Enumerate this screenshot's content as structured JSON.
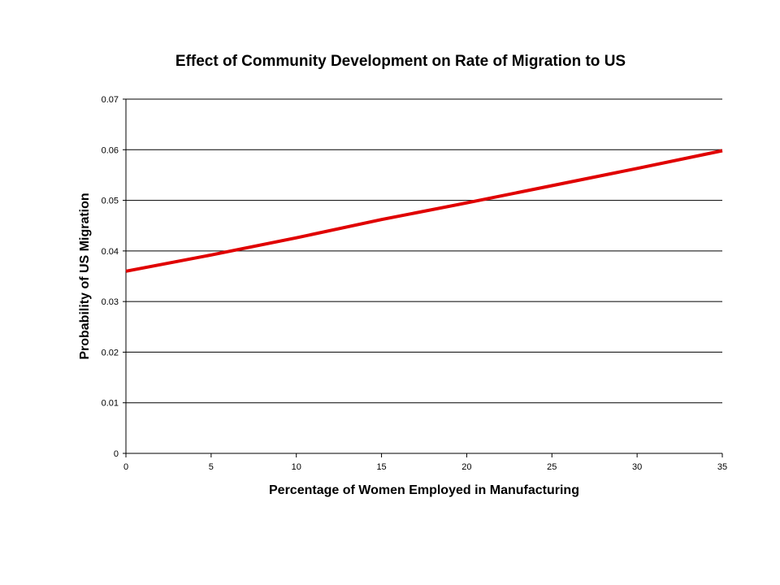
{
  "chart_data": {
    "type": "line",
    "title": "Effect of Community Development on Rate of Migration to US",
    "xlabel": "Percentage of Women Employed in Manufacturing",
    "ylabel": "Probability of US Migration",
    "xlim": [
      0,
      35
    ],
    "ylim": [
      0,
      0.07
    ],
    "x_ticks": [
      0,
      5,
      10,
      15,
      20,
      25,
      30,
      35
    ],
    "y_ticks": [
      0,
      0.01,
      0.02,
      0.03,
      0.04,
      0.05,
      0.06,
      0.07
    ],
    "x_tick_labels": [
      "0",
      "5",
      "10",
      "15",
      "20",
      "25",
      "30",
      "35"
    ],
    "y_tick_labels": [
      "0",
      "0.01",
      "0.02",
      "0.03",
      "0.04",
      "0.05",
      "0.06",
      "0.07"
    ],
    "grid": "horizontal",
    "legend": "none",
    "series": [
      {
        "color": "#e00000",
        "x": [
          0,
          5,
          10,
          15,
          20,
          25,
          30,
          35
        ],
        "y": [
          0.036,
          0.0392,
          0.0426,
          0.0462,
          0.0495,
          0.0529,
          0.0563,
          0.0598
        ]
      }
    ]
  }
}
